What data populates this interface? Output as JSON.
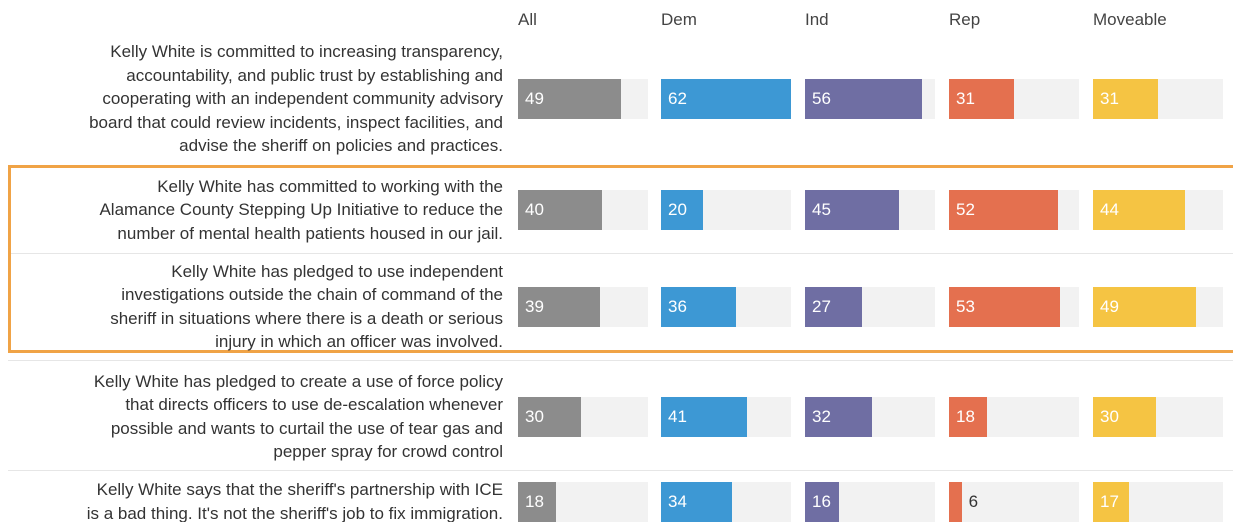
{
  "columns": [
    "All",
    "Dem",
    "Ind",
    "Rep",
    "Moveable"
  ],
  "colors": [
    "#8c8c8c",
    "#3d98d4",
    "#6f6ea3",
    "#e4704f",
    "#f5c443"
  ],
  "xlim": [
    0,
    62
  ],
  "rows": [
    {
      "label_lines": [
        "Kelly White is committed to increasing transparency,",
        "accountability, and public trust by establishing and",
        "cooperating with an independent community advisory",
        "board that could review incidents, inspect facilities, and",
        "advise the sheriff on policies and practices."
      ],
      "values": [
        49,
        62,
        56,
        31,
        31
      ]
    },
    {
      "label_lines": [
        "Kelly White has committed to working with the",
        "Alamance County Stepping Up Initiative to reduce the",
        "number of mental health patients housed in our jail."
      ],
      "values": [
        40,
        20,
        45,
        52,
        44
      ]
    },
    {
      "label_lines": [
        "Kelly White has pledged to use independent",
        "investigations outside the chain of command of the",
        "sheriff in situations where there is a death or serious",
        "injury in which an officer was involved."
      ],
      "values": [
        39,
        36,
        27,
        53,
        49
      ]
    },
    {
      "label_lines": [
        "Kelly White has pledged to create a use of force policy",
        "that directs officers to use de-escalation whenever",
        "possible and wants to curtail the use of tear gas and",
        "pepper spray for crowd control"
      ],
      "values": [
        30,
        41,
        32,
        18,
        30
      ]
    },
    {
      "label_lines": [
        "Kelly White says that the sheriff's partnership with ICE",
        "is a bad thing. It's not the sheriff's job to fix immigration."
      ],
      "values": [
        18,
        34,
        16,
        6,
        17
      ]
    }
  ]
}
